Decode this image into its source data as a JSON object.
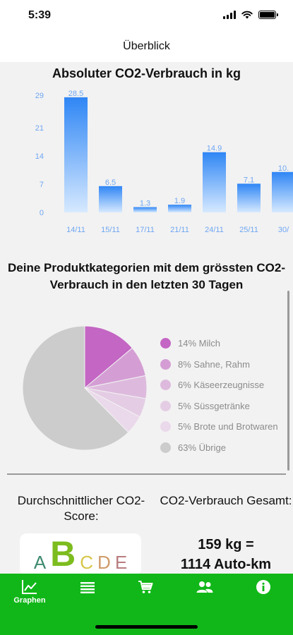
{
  "status": {
    "time": "5:39"
  },
  "nav": {
    "title": "Überblick"
  },
  "bar_section": {
    "title": "Absoluter CO2-Verbrauch in kg"
  },
  "pie_section": {
    "title": "Deine Produktkategorien mit dem grössten CO2-Verbrauch in den letzten 30 Tagen"
  },
  "chart_data": [
    {
      "type": "bar",
      "title": "Absoluter CO2-Verbrauch in kg",
      "categories": [
        "14/11",
        "15/11",
        "17/11",
        "21/11",
        "24/11",
        "25/11",
        "30/"
      ],
      "values": [
        28.5,
        6.5,
        1.3,
        1.9,
        14.9,
        7.1,
        10
      ],
      "value_labels": [
        "28.5",
        "6.5",
        "1.3",
        "1.9",
        "14.9",
        "7.1",
        "10."
      ],
      "yticks": [
        0,
        7,
        14,
        21,
        29
      ],
      "ylim": [
        0,
        29
      ],
      "grid": false,
      "colors": {
        "top": "#2f86f5",
        "bottom": "#d6e9ff",
        "label": "#6ea6f2"
      }
    },
    {
      "type": "pie",
      "title": "Deine Produktkategorien mit dem grössten CO2-Verbrauch in den letzten 30 Tagen",
      "slices": [
        {
          "label": "14% Milch",
          "value": 14,
          "color": "#c466c4"
        },
        {
          "label": "8% Sahne, Rahm",
          "value": 8,
          "color": "#d49ed4"
        },
        {
          "label": "6% Käseerzeugnisse",
          "value": 6,
          "color": "#ddbadd"
        },
        {
          "label": "5% Süssgetränke",
          "value": 5,
          "color": "#e4cde4"
        },
        {
          "label": "5% Brote und Brotwaren",
          "value": 5,
          "color": "#ead9ea"
        },
        {
          "label": "63% Übrige",
          "value": 63,
          "color": "#cccccc"
        }
      ],
      "legend": "right"
    }
  ],
  "score": {
    "heading": "Durchschnittlicher CO2-Score:",
    "letters": [
      {
        "text": "A",
        "color": "#3e8a6e"
      },
      {
        "text": "B",
        "color": "#7cbc1e"
      },
      {
        "text": "C",
        "color": "#d6c64a"
      },
      {
        "text": "D",
        "color": "#cf9c6b"
      },
      {
        "text": "E",
        "color": "#b97d80"
      }
    ],
    "highlight": "B"
  },
  "total": {
    "heading": "CO2-Verbrauch Gesamt:",
    "value_line1": "159 kg =",
    "value_line2": "1114 Auto-km"
  },
  "tabs": [
    {
      "label": "Graphen",
      "icon": "line-chart-icon",
      "active": true
    },
    {
      "label": "",
      "icon": "list-icon",
      "active": false
    },
    {
      "label": "",
      "icon": "cart-icon",
      "active": false
    },
    {
      "label": "",
      "icon": "people-icon",
      "active": false
    },
    {
      "label": "",
      "icon": "info-icon",
      "active": false
    }
  ],
  "colors": {
    "tab_bar": "#11b719",
    "accent_blue": "#2f86f5"
  }
}
